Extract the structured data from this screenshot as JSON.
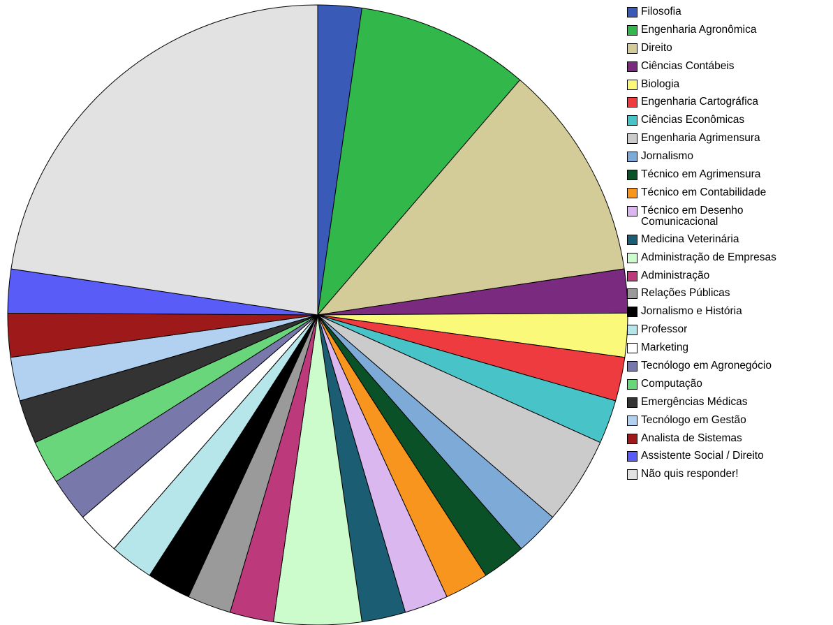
{
  "chart_data": {
    "type": "pie",
    "title": "",
    "legend_position": "right",
    "start_angle_deg": 0,
    "direction": "clockwise",
    "slices": [
      {
        "label": "Filosofia",
        "value": 2.4,
        "color": "#3a5ab8"
      },
      {
        "label": "Engenharia Agronômica",
        "value": 9.5,
        "color": "#32b84a"
      },
      {
        "label": "Direito",
        "value": 11.9,
        "color": "#d3cc98"
      },
      {
        "label": "Ciências Contábeis",
        "value": 2.4,
        "color": "#7a2b80"
      },
      {
        "label": "Biologia",
        "value": 2.4,
        "color": "#fbf97a"
      },
      {
        "label": "Engenharia Cartográfica",
        "value": 2.4,
        "color": "#ee3b3f"
      },
      {
        "label": "Ciências Econômicas",
        "value": 2.4,
        "color": "#48c4c8"
      },
      {
        "label": "Engenharia Agrimensura",
        "value": 4.8,
        "color": "#cbcbcb"
      },
      {
        "label": "Jornalismo",
        "value": 2.4,
        "color": "#7eaad8"
      },
      {
        "label": "Técnico em Agrimensura",
        "value": 2.4,
        "color": "#0b5128"
      },
      {
        "label": "Técnico em Contabilidade",
        "value": 2.4,
        "color": "#f7951e"
      },
      {
        "label": "Técnico em Desenho\nComunicacional",
        "value": 2.4,
        "color": "#dbb7ef"
      },
      {
        "label": "Medicina Veterinária",
        "value": 2.4,
        "color": "#1b5e74"
      },
      {
        "label": "Administração de Empresas",
        "value": 4.8,
        "color": "#ccfbcc"
      },
      {
        "label": "Administração",
        "value": 2.4,
        "color": "#bc3a7c"
      },
      {
        "label": "Relações Públicas",
        "value": 2.4,
        "color": "#9a9a9a"
      },
      {
        "label": "Jornalismo e História",
        "value": 2.4,
        "color": "#000000"
      },
      {
        "label": "Professor",
        "value": 2.4,
        "color": "#b7e6ea"
      },
      {
        "label": "Marketing",
        "value": 2.4,
        "color": "#ffffff"
      },
      {
        "label": "Tecnólogo em Agronegócio",
        "value": 2.4,
        "color": "#7878aa"
      },
      {
        "label": "Computação",
        "value": 2.4,
        "color": "#6ad67c"
      },
      {
        "label": "Emergências Médicas",
        "value": 2.4,
        "color": "#333333"
      },
      {
        "label": "Tecnólogo em Gestão",
        "value": 2.4,
        "color": "#b2d0f0"
      },
      {
        "label": "Analista de Sistemas",
        "value": 2.4,
        "color": "#9e1a1a"
      },
      {
        "label": "Assistente Social / Direito",
        "value": 2.4,
        "color": "#5a5cf8"
      },
      {
        "label": "Não quis responder!",
        "value": 23.8,
        "color": "#e2e2e2"
      }
    ]
  }
}
